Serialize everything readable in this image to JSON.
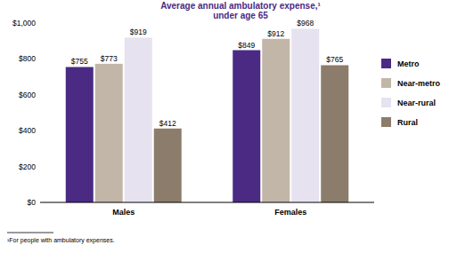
{
  "chart_data": {
    "type": "bar",
    "title": "Average annual ambulatory expense,¹",
    "subtitle": "under age 65",
    "annotations": [
      "¹For people with ambulatory expenses."
    ],
    "categories": [
      "Males",
      "Females"
    ],
    "series": [
      {
        "name": "Metro",
        "color": "#4b2a84",
        "values": [
          755,
          849
        ],
        "value_labels": [
          "$755",
          "$849"
        ]
      },
      {
        "name": "Near-metro",
        "color": "#c2b6a8",
        "values": [
          773,
          912
        ],
        "value_labels": [
          "$773",
          "$912"
        ]
      },
      {
        "name": "Near-rural",
        "color": "#e6e2f0",
        "values": [
          919,
          968
        ],
        "value_labels": [
          "$919",
          "$968"
        ]
      },
      {
        "name": "Rural",
        "color": "#8c7c6b",
        "values": [
          412,
          765
        ],
        "value_labels": [
          "$412",
          "$765"
        ]
      }
    ],
    "ylim": [
      0,
      1000
    ],
    "yticks": [
      {
        "value": 0,
        "label": "$0"
      },
      {
        "value": 200,
        "label": "$200"
      },
      {
        "value": 400,
        "label": "$400"
      },
      {
        "value": 600,
        "label": "$600"
      },
      {
        "value": 800,
        "label": "$800"
      },
      {
        "value": 1000,
        "label": "$1,000"
      }
    ],
    "grid": false,
    "legend": "right",
    "data_labels": true
  }
}
